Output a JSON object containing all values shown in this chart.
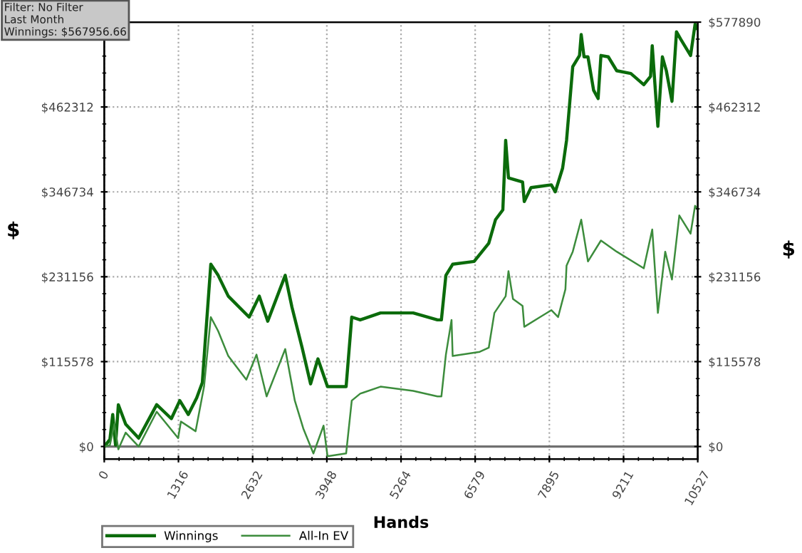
{
  "chart_data": {
    "type": "line",
    "xlabel": "Hands",
    "ylabel": "$",
    "y2label": "$",
    "annotations": [
      "Filter: No Filter",
      "Last Month",
      "Winnings: $567956.66"
    ],
    "xlim": [
      0,
      10527
    ],
    "xticks": [
      0,
      1316,
      2632,
      3948,
      5264,
      6579,
      7895,
      9211,
      10527
    ],
    "ylim": [
      -17000,
      577890
    ],
    "yticks": [
      {
        "value": 0,
        "label": "$0"
      },
      {
        "value": 115578,
        "label": "$115578"
      },
      {
        "value": 231156,
        "label": "$231156"
      },
      {
        "value": 346734,
        "label": "$346734"
      },
      {
        "value": 462312,
        "label": "$462312"
      }
    ],
    "y2lim": [
      -17000,
      577890
    ],
    "y2ticks": [
      {
        "value": 0,
        "label": "$0"
      },
      {
        "value": 115578,
        "label": "$115578"
      },
      {
        "value": 231156,
        "label": "$231156"
      },
      {
        "value": 346734,
        "label": "$346734"
      },
      {
        "value": 462312,
        "label": "$462312"
      },
      {
        "value": 577890,
        "label": "$577890"
      }
    ],
    "ref_lines": [
      {
        "axis": "y",
        "value": 0,
        "color": "#707070"
      }
    ],
    "grid": true,
    "legend": "bottom",
    "marker": "none",
    "line_style": "solid",
    "series": [
      {
        "name": "Winnings",
        "color": "#0b6b0b",
        "x": [
          0,
          100,
          150,
          200,
          250,
          380,
          610,
          930,
          1190,
          1340,
          1490,
          1640,
          1740,
          1790,
          1890,
          2020,
          2200,
          2570,
          2750,
          2900,
          3210,
          3330,
          3510,
          3660,
          3790,
          3960,
          4290,
          4390,
          4540,
          4900,
          5480,
          5910,
          5980,
          6060,
          6180,
          6560,
          6820,
          6940,
          7070,
          7120,
          7170,
          7420,
          7450,
          7570,
          7930,
          8000,
          8130,
          8200,
          8310,
          8430,
          8460,
          8510,
          8580,
          8680,
          8760,
          8810,
          8940,
          9090,
          9340,
          9570,
          9690,
          9720,
          9820,
          9900,
          9970,
          10070,
          10150,
          10220,
          10400,
          10480,
          10527
        ],
        "values": [
          0,
          9500,
          43600,
          1900,
          56900,
          30300,
          11400,
          56900,
          37900,
          62500,
          43600,
          66300,
          87200,
          142100,
          248200,
          233100,
          204700,
          176200,
          204700,
          170600,
          233100,
          189500,
          134500,
          85300,
          119400,
          81500,
          81500,
          176200,
          172400,
          181900,
          181900,
          172400,
          172400,
          233100,
          248200,
          252000,
          276700,
          308900,
          322200,
          416900,
          365700,
          360100,
          333500,
          352500,
          356300,
          346800,
          379000,
          416900,
          517300,
          532500,
          560900,
          530600,
          530600,
          485100,
          473800,
          532500,
          530600,
          511700,
          507900,
          492700,
          504100,
          545800,
          435900,
          530600,
          511700,
          470000,
          564700,
          555200,
          532500,
          575000,
          567957
        ]
      },
      {
        "name": "All-In EV",
        "color": "#3c8c3c",
        "x": [
          0,
          100,
          180,
          250,
          380,
          610,
          930,
          1110,
          1310,
          1360,
          1620,
          1770,
          1890,
          2020,
          2200,
          2520,
          2700,
          2880,
          3210,
          3380,
          3530,
          3710,
          3890,
          3960,
          4290,
          4390,
          4540,
          4900,
          5480,
          5910,
          5980,
          6060,
          6160,
          6180,
          6660,
          6820,
          6920,
          7120,
          7170,
          7250,
          7420,
          7450,
          7930,
          8050,
          8180,
          8200,
          8310,
          8460,
          8580,
          8810,
          9090,
          9570,
          9720,
          9820,
          9950,
          10070,
          10200,
          10400,
          10480,
          10527
        ],
        "values": [
          0,
          1900,
          30300,
          -3800,
          18900,
          0,
          47400,
          30300,
          11400,
          34100,
          20800,
          81500,
          176200,
          157300,
          123200,
          91000,
          125100,
          68200,
          132700,
          62500,
          24600,
          -9500,
          28400,
          -13300,
          -9500,
          62500,
          72000,
          81500,
          75800,
          68200,
          68200,
          125100,
          172400,
          123200,
          128900,
          134500,
          181900,
          204700,
          238800,
          200900,
          191400,
          163000,
          185700,
          176200,
          214100,
          246400,
          265300,
          308900,
          252000,
          280500,
          265300,
          242600,
          295600,
          181900,
          265300,
          227400,
          314600,
          289900,
          327800,
          322200
        ]
      }
    ]
  }
}
